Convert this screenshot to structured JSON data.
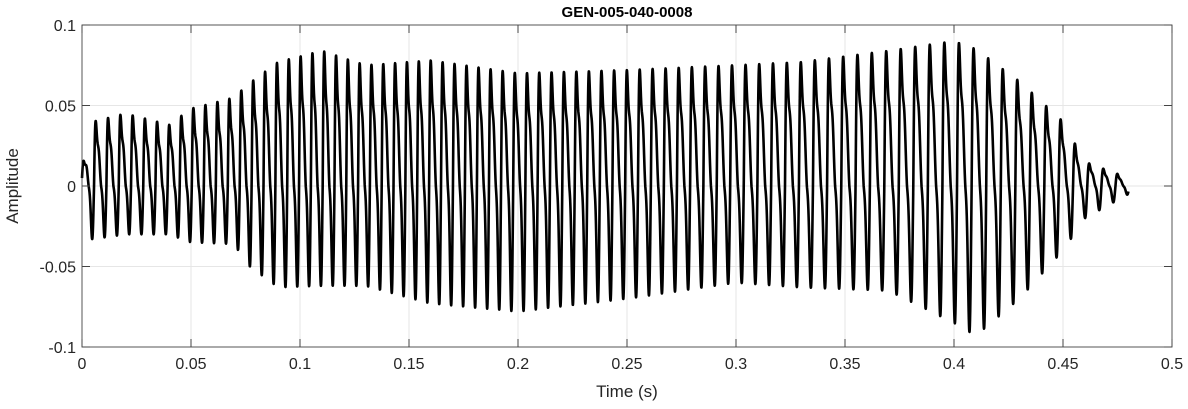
{
  "chart_data": {
    "type": "line",
    "title": "GEN-005-040-0008",
    "xlabel": "Time (s)",
    "ylabel": "Amplitude",
    "xlim": [
      0,
      0.5
    ],
    "ylim": [
      -0.1,
      0.1
    ],
    "xticks": [
      0,
      0.05,
      0.1,
      0.15,
      0.2,
      0.25,
      0.3,
      0.35,
      0.4,
      0.45,
      0.5
    ],
    "xtick_labels": [
      "0",
      "0.05",
      "0.1",
      "0.15",
      "0.2",
      "0.25",
      "0.3",
      "0.35",
      "0.4",
      "0.45",
      "0.5"
    ],
    "yticks": [
      -0.1,
      -0.05,
      0,
      0.05,
      0.1
    ],
    "ytick_labels": [
      "-0.1",
      "-0.05",
      "0",
      "0.05",
      "0.1"
    ],
    "grid": true,
    "line_color": "#000000",
    "grid_color": "#e6e6e6",
    "signal_end_s": 0.48,
    "fundamental_hz": 175,
    "envelope": {
      "t": [
        0.0,
        0.005,
        0.02,
        0.04,
        0.05,
        0.07,
        0.075,
        0.09,
        0.11,
        0.13,
        0.16,
        0.2,
        0.25,
        0.3,
        0.33,
        0.37,
        0.4,
        0.41,
        0.43,
        0.45,
        0.46,
        0.48
      ],
      "max": [
        0.012,
        0.04,
        0.045,
        0.038,
        0.048,
        0.055,
        0.062,
        0.077,
        0.084,
        0.075,
        0.078,
        0.07,
        0.072,
        0.075,
        0.077,
        0.084,
        0.09,
        0.085,
        0.065,
        0.04,
        0.015,
        0.005
      ],
      "min": [
        -0.033,
        -0.033,
        -0.03,
        -0.03,
        -0.035,
        -0.036,
        -0.048,
        -0.063,
        -0.062,
        -0.062,
        -0.073,
        -0.078,
        -0.07,
        -0.06,
        -0.063,
        -0.065,
        -0.085,
        -0.093,
        -0.07,
        -0.04,
        -0.02,
        -0.005
      ]
    }
  }
}
